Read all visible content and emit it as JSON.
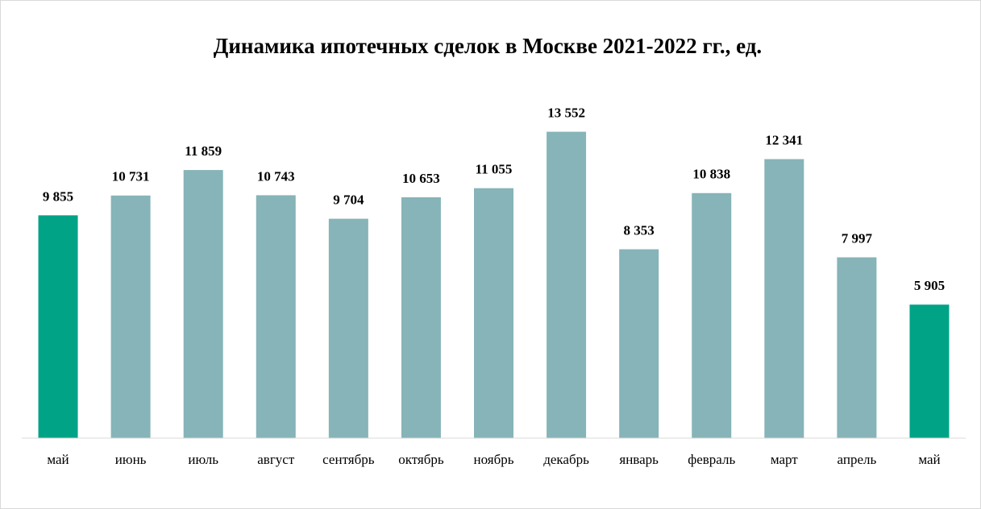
{
  "chart_data": {
    "type": "bar",
    "title": "Динамика ипотечных сделок в Москве 2021-2022 гг., ед.",
    "categories": [
      "май",
      "июнь",
      "июль",
      "август",
      "сентябрь",
      "октябрь",
      "ноябрь",
      "декабрь",
      "январь",
      "февраль",
      "март",
      "апрель",
      "май"
    ],
    "values": [
      9855,
      10731,
      11859,
      10743,
      9704,
      10653,
      11055,
      13552,
      8353,
      10838,
      12341,
      7997,
      5905
    ],
    "value_labels": [
      "9 855",
      "10 731",
      "11 859",
      "10 743",
      "9 704",
      "10 653",
      "11 055",
      "13 552",
      "8 353",
      "10 838",
      "12 341",
      "7 997",
      "5 905"
    ],
    "colors": [
      "#00a386",
      "#86b4b8",
      "#86b4b8",
      "#86b4b8",
      "#86b4b8",
      "#86b4b8",
      "#86b4b8",
      "#86b4b8",
      "#86b4b8",
      "#86b4b8",
      "#86b4b8",
      "#86b4b8",
      "#00a386"
    ],
    "ylim": [
      0,
      14000
    ]
  }
}
